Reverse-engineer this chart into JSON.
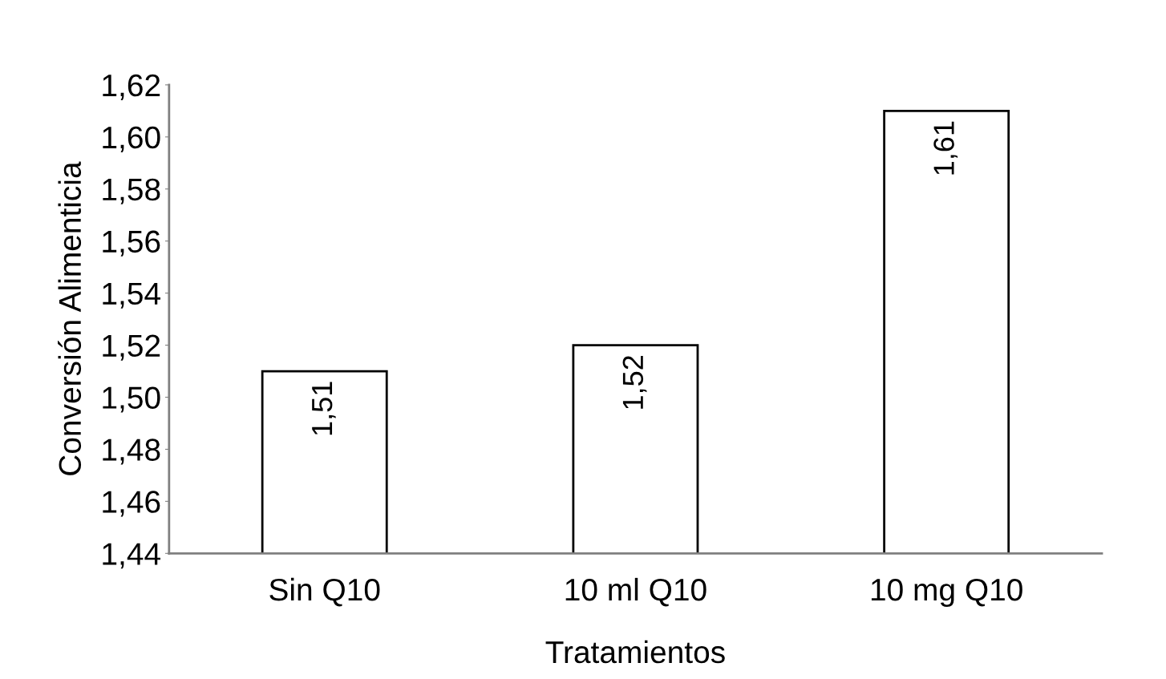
{
  "chart_data": {
    "type": "bar",
    "xlabel": "Tratamientos",
    "ylabel": "Conversión Alimenticia",
    "categories": [
      "Sin Q10",
      "10 ml Q10",
      "10 mg Q10"
    ],
    "values": [
      1.51,
      1.52,
      1.61
    ],
    "color": "#ffffff",
    "value_labels": [
      "1,51",
      "1,52",
      "1,61"
    ],
    "ylim": [
      1.44,
      1.62
    ],
    "yticks": [
      {
        "value": 1.44,
        "label": "1,44"
      },
      {
        "value": 1.46,
        "label": "1,46"
      },
      {
        "value": 1.48,
        "label": "1,48"
      },
      {
        "value": 1.5,
        "label": "1,50"
      },
      {
        "value": 1.52,
        "label": "1,52"
      },
      {
        "value": 1.54,
        "label": "1,54"
      },
      {
        "value": 1.56,
        "label": "1,56"
      },
      {
        "value": 1.58,
        "label": "1,58"
      },
      {
        "value": 1.6,
        "label": "1,60"
      },
      {
        "value": 1.62,
        "label": "1,62"
      }
    ],
    "grid": false,
    "legend": false
  }
}
